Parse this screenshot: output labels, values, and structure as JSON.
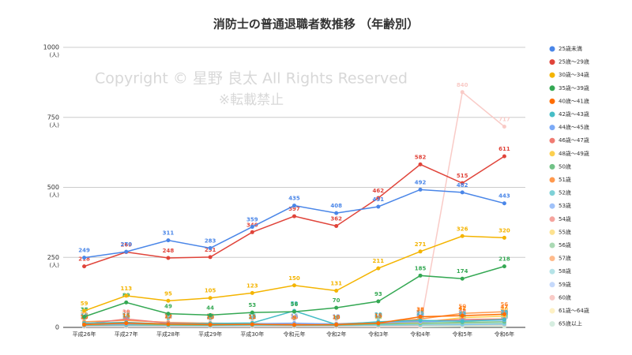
{
  "chart_data": {
    "type": "line",
    "title": "消防士の普通退職者数推移 （年齢別）",
    "annotations": [
      "Copyright ©  星野 良太 All Rights Reserved",
      "※転載禁止"
    ],
    "y_unit": "(人)",
    "categories": [
      "平成26年",
      "平成27年",
      "平成28年",
      "平成29年",
      "平成30年",
      "令和元年",
      "令和2年",
      "令和3年",
      "令和4年",
      "令和5年",
      "令和6年"
    ],
    "ylim": [
      0,
      1000
    ],
    "yticks": [
      0,
      250,
      500,
      750,
      1000
    ],
    "grid": true,
    "series": [
      {
        "name": "25歳未満",
        "color": "#4a86e8",
        "values": [
          249,
          270,
          311,
          283,
          359,
          435,
          408,
          431,
          492,
          482,
          443
        ]
      },
      {
        "name": "25歳～29歳",
        "color": "#e0443a",
        "values": [
          218,
          269,
          248,
          251,
          340,
          397,
          362,
          462,
          582,
          515,
          611
        ]
      },
      {
        "name": "30歳～34歳",
        "color": "#f4b400",
        "values": [
          59,
          113,
          95,
          105,
          123,
          150,
          131,
          211,
          271,
          326,
          320
        ]
      },
      {
        "name": "35歳～39歳",
        "color": "#34a853",
        "values": [
          38,
          89,
          49,
          44,
          53,
          56,
          70,
          93,
          185,
          174,
          218
        ]
      },
      {
        "name": "40歳～41歳",
        "color": "#ff6d01",
        "values": [
          10,
          15,
          12,
          10,
          11,
          9,
          10,
          15,
          38,
          42,
          47
        ]
      },
      {
        "name": "42歳～43歳",
        "color": "#46bdc6",
        "values": [
          15,
          18,
          12,
          14,
          16,
          59,
          10,
          20,
          25,
          22,
          28
        ]
      },
      {
        "name": "44歳～45歳",
        "color": "#7baaf7",
        "values": [
          10,
          12,
          14,
          11,
          13,
          15,
          12,
          18,
          20,
          24,
          26
        ]
      },
      {
        "name": "46歳～47歳",
        "color": "#f07b72",
        "values": [
          12,
          30,
          15,
          14,
          12,
          10,
          12,
          15,
          22,
          28,
          30
        ]
      },
      {
        "name": "48歳～49歳",
        "color": "#fcd04f",
        "values": [
          14,
          16,
          13,
          12,
          14,
          12,
          11,
          16,
          18,
          35,
          40
        ]
      },
      {
        "name": "50歳",
        "color": "#71c287",
        "values": [
          8,
          10,
          9,
          8,
          10,
          9,
          8,
          12,
          15,
          18,
          20
        ]
      },
      {
        "name": "51歳",
        "color": "#ff994d",
        "values": [
          20,
          25,
          18,
          15,
          14,
          12,
          13,
          18,
          30,
          50,
          56
        ]
      },
      {
        "name": "52歳",
        "color": "#7ed1d7",
        "values": [
          8,
          9,
          8,
          7,
          8,
          7,
          8,
          9,
          10,
          12,
          14
        ]
      },
      {
        "name": "53歳",
        "color": "#a0c2f9",
        "values": [
          6,
          7,
          6,
          6,
          7,
          6,
          7,
          8,
          9,
          10,
          12
        ]
      },
      {
        "name": "54歳",
        "color": "#f5a39d",
        "values": [
          7,
          8,
          7,
          6,
          8,
          7,
          6,
          9,
          10,
          12,
          13
        ]
      },
      {
        "name": "55歳",
        "color": "#fde290",
        "values": [
          9,
          10,
          8,
          9,
          10,
          8,
          9,
          10,
          12,
          14,
          15
        ]
      },
      {
        "name": "56歳",
        "color": "#aad9b4",
        "values": [
          6,
          7,
          6,
          6,
          7,
          6,
          6,
          8,
          9,
          10,
          11
        ]
      },
      {
        "name": "57歳",
        "color": "#ffbb8c",
        "values": [
          5,
          6,
          5,
          6,
          6,
          5,
          6,
          7,
          8,
          9,
          10
        ]
      },
      {
        "name": "58歳",
        "color": "#b5e3e7",
        "values": [
          5,
          5,
          5,
          5,
          6,
          5,
          5,
          6,
          7,
          8,
          9
        ]
      },
      {
        "name": "59歳",
        "color": "#c5d9fb",
        "values": [
          5,
          6,
          5,
          5,
          6,
          5,
          6,
          6,
          7,
          8,
          9
        ]
      },
      {
        "name": "60歳",
        "color": "#f9cbc7",
        "values": [
          3,
          3,
          3,
          3,
          3,
          3,
          3,
          3,
          3,
          840,
          717
        ]
      },
      {
        "name": "61歳～64歳",
        "color": "#fef1c5",
        "values": [
          4,
          5,
          4,
          4,
          5,
          4,
          4,
          5,
          6,
          7,
          8
        ]
      },
      {
        "name": "65歳以上",
        "color": "#d6ede0",
        "values": [
          2,
          2,
          2,
          2,
          2,
          2,
          2,
          2,
          2,
          3,
          3
        ]
      }
    ]
  }
}
